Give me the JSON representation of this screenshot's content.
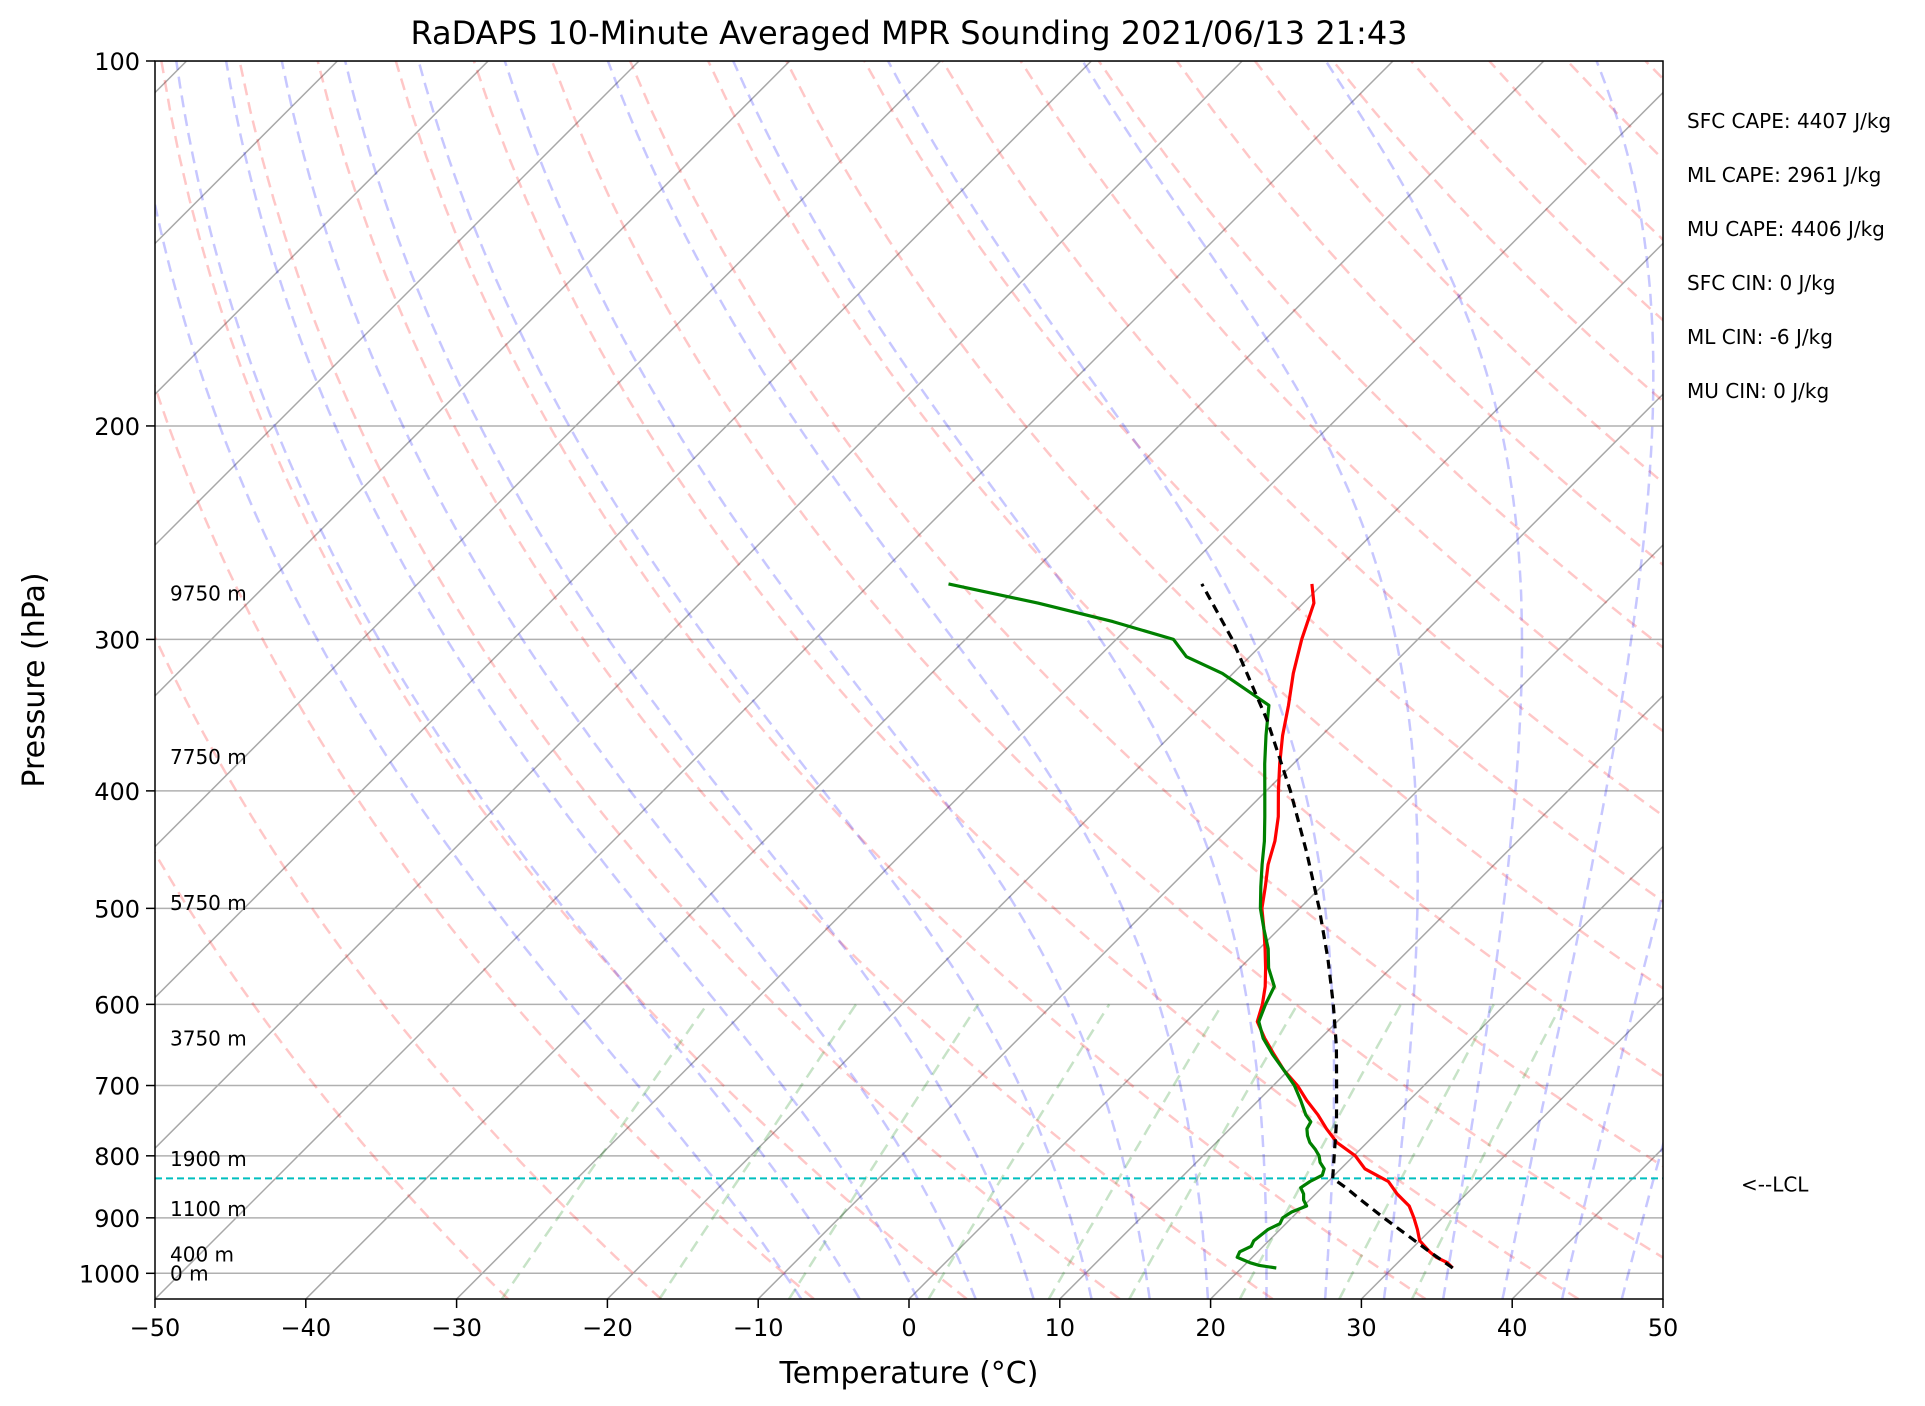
{
  "chart_data": {
    "type": "line",
    "title": "RaDAPS 10-Minute Averaged MPR Sounding 2021/06/13 21:43",
    "xlabel": "Temperature (°C)",
    "ylabel": "Pressure (hPa)",
    "xlim": [
      -50,
      50
    ],
    "ylim": [
      1050,
      100
    ],
    "y_scale": "log",
    "skew": "skew-T",
    "grid": true,
    "x_ticks": [
      -50,
      -40,
      -30,
      -20,
      -10,
      0,
      10,
      20,
      30,
      40,
      50
    ],
    "x_tick_labels": [
      "−50",
      "−40",
      "−30",
      "−20",
      "−10",
      "0",
      "10",
      "20",
      "30",
      "40",
      "50"
    ],
    "y_ticks": [
      100,
      200,
      300,
      400,
      500,
      600,
      700,
      800,
      900,
      1000
    ],
    "y_tick_labels": [
      "100",
      "200",
      "300",
      "400",
      "500",
      "600",
      "700",
      "800",
      "900",
      "1000"
    ],
    "height_labels": [
      {
        "pressure": 275,
        "text": "9750 m"
      },
      {
        "pressure": 375,
        "text": "7750 m"
      },
      {
        "pressure": 495,
        "text": "5750 m"
      },
      {
        "pressure": 640,
        "text": "3750 m"
      },
      {
        "pressure": 805,
        "text": "1900 m"
      },
      {
        "pressure": 885,
        "text": "1100 m"
      },
      {
        "pressure": 965,
        "text": "400 m"
      },
      {
        "pressure": 1000,
        "text": "0 m"
      }
    ],
    "stats": [
      "SFC CAPE: 4407 J/kg",
      "ML CAPE: 2961 J/kg",
      "MU CAPE: 4406 J/kg",
      "SFC CIN: 0 J/kg",
      "ML CIN: -6 J/kg",
      "MU CIN: 0 J/kg"
    ],
    "lcl": {
      "pressure": 835,
      "label": "<--LCL"
    },
    "series": [
      {
        "color": "#ff0000",
        "pressure": [
          990,
          980,
          970,
          960,
          940,
          920,
          900,
          880,
          860,
          840,
          830,
          820,
          800,
          780,
          760,
          740,
          720,
          700,
          680,
          660,
          640,
          620,
          600,
          580,
          560,
          540,
          520,
          500,
          480,
          460,
          440,
          420,
          400,
          380,
          360,
          340,
          320,
          300,
          280,
          270
        ],
        "temperature": [
          34.0,
          33.3,
          32.2,
          31.4,
          30.0,
          29.1,
          28.1,
          27.0,
          25.4,
          24.0,
          22.8,
          21.6,
          20.1,
          18.0,
          16.4,
          14.9,
          13.2,
          11.6,
          9.7,
          8.0,
          6.3,
          4.7,
          3.9,
          2.9,
          1.7,
          0.4,
          -1.0,
          -2.5,
          -3.7,
          -5.0,
          -6.1,
          -7.5,
          -9.2,
          -10.9,
          -12.6,
          -14.2,
          -16.0,
          -17.7,
          -19.3,
          -20.7
        ]
      },
      {
        "color": "#008000",
        "pressure": [
          990,
          985,
          980,
          975,
          970,
          960,
          950,
          940,
          930,
          920,
          910,
          900,
          890,
          880,
          870,
          860,
          850,
          840,
          830,
          820,
          810,
          800,
          790,
          780,
          770,
          760,
          750,
          740,
          720,
          700,
          680,
          660,
          640,
          620,
          600,
          580,
          560,
          540,
          520,
          500,
          480,
          460,
          440,
          420,
          400,
          380,
          360,
          340,
          320,
          310,
          300,
          290,
          280,
          270
        ],
        "temperature": [
          22.3,
          21.0,
          20.2,
          19.6,
          19.0,
          18.8,
          19.2,
          19.0,
          19.1,
          19.2,
          19.6,
          19.4,
          19.6,
          20.2,
          19.6,
          19.2,
          18.6,
          18.8,
          19.2,
          18.9,
          18.2,
          17.7,
          17.0,
          16.2,
          15.6,
          15.1,
          14.9,
          14.1,
          12.8,
          11.4,
          9.7,
          7.9,
          6.2,
          4.8,
          4.1,
          3.5,
          1.9,
          0.6,
          -1.0,
          -2.6,
          -4.0,
          -5.4,
          -6.8,
          -8.4,
          -10.1,
          -11.9,
          -13.7,
          -15.5,
          -20.7,
          -24.2,
          -26.2,
          -31.4,
          -37.6,
          -44.8
        ]
      },
      {
        "color": "#000000",
        "dashed": true,
        "pressure": [
          990,
          960,
          930,
          900,
          870,
          850,
          835,
          800,
          750,
          700,
          650,
          600,
          550,
          500,
          450,
          400,
          350,
          300,
          270
        ],
        "temperature": [
          34.0,
          31.4,
          28.8,
          26.1,
          23.4,
          21.6,
          20.1,
          18.7,
          16.6,
          14.2,
          11.6,
          8.6,
          5.2,
          1.3,
          -3.2,
          -8.4,
          -14.6,
          -22.3,
          -28.0
        ]
      }
    ]
  }
}
